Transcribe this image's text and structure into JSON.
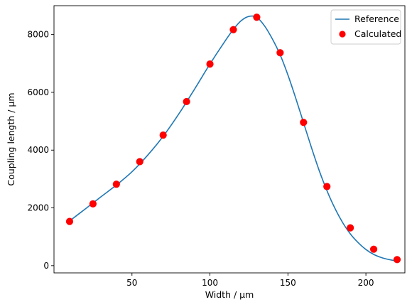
{
  "chart_data": {
    "type": "line",
    "title": "",
    "xlabel": "Width / µm",
    "ylabel": "Coupling length / µm",
    "xlim": [
      0,
      225
    ],
    "ylim": [
      -250,
      9000
    ],
    "x_ticks": [
      50,
      100,
      150,
      200
    ],
    "y_ticks": [
      0,
      2000,
      4000,
      6000,
      8000
    ],
    "grid": false,
    "legend_position": "top-right",
    "series": [
      {
        "name": "Reference",
        "style": "line",
        "color": "#1f77b4",
        "x": [
          10,
          20,
          30,
          40,
          50,
          60,
          70,
          80,
          90,
          100,
          110,
          115,
          120,
          125,
          130,
          135,
          140,
          145,
          150,
          155,
          160,
          165,
          170,
          175,
          180,
          185,
          190,
          195,
          200,
          205,
          210,
          215,
          219
        ],
        "y": [
          1550,
          1960,
          2380,
          2790,
          3250,
          3820,
          4480,
          5250,
          6100,
          6980,
          7800,
          8180,
          8480,
          8630,
          8600,
          8300,
          7850,
          7300,
          6600,
          5800,
          4950,
          4100,
          3300,
          2600,
          2000,
          1500,
          1100,
          800,
          560,
          390,
          280,
          210,
          170
        ]
      },
      {
        "name": "Calculated",
        "style": "markers",
        "color": "#ff0000",
        "x": [
          10,
          25,
          40,
          55,
          70,
          85,
          100,
          115,
          130,
          145,
          160,
          175,
          190,
          205,
          220
        ],
        "y": [
          1530,
          2140,
          2820,
          3600,
          4520,
          5680,
          6980,
          8170,
          8600,
          7370,
          4960,
          2740,
          1310,
          570,
          210
        ]
      }
    ]
  }
}
